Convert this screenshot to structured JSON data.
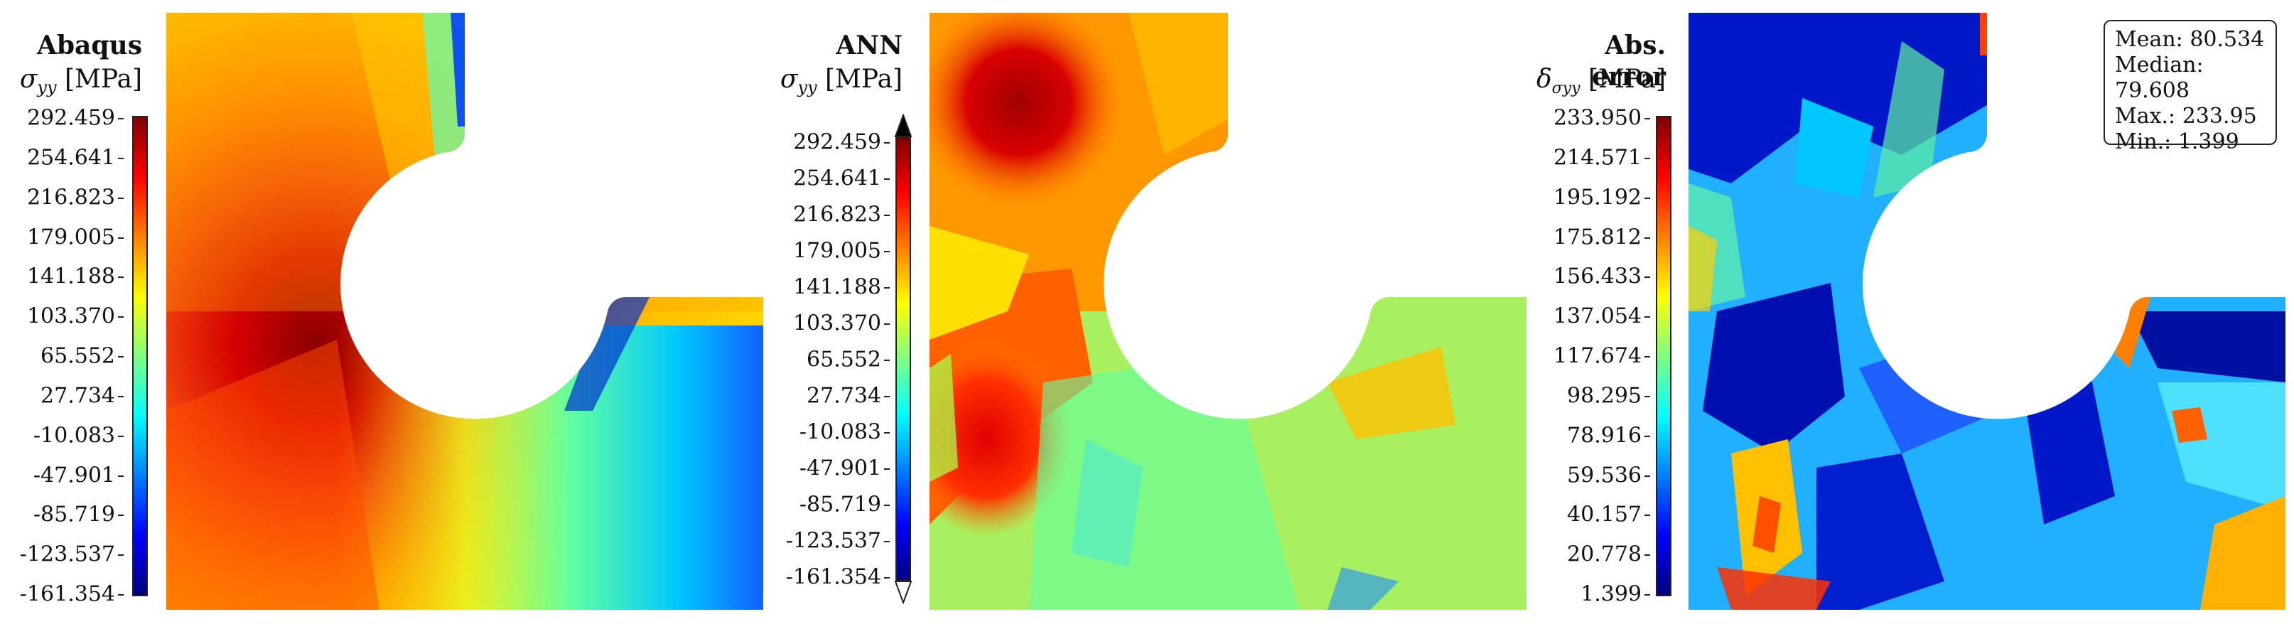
{
  "chart_data": [
    {
      "type": "heatmap",
      "title": "Abaqus",
      "ylabel": "σ_yy [MPa]",
      "ylabel_sym": "σ",
      "ylabel_sub": "yy",
      "ylabel_unit": "[MPa]",
      "colormap": "jet",
      "clim": [
        -161.354,
        292.459
      ],
      "colorbar_ticks": [
        "292.459",
        "254.641",
        "216.823",
        "179.005",
        "141.188",
        "103.370",
        "65.552",
        "27.734",
        "-10.083",
        "-47.901",
        "-85.719",
        "-123.537",
        "-161.354"
      ],
      "colorbar_extend": "none"
    },
    {
      "type": "heatmap",
      "title": "ANN",
      "ylabel": "σ_yy [MPa]",
      "ylabel_sym": "σ",
      "ylabel_sub": "yy",
      "ylabel_unit": "[MPa]",
      "colormap": "jet",
      "clim": [
        -161.354,
        292.459
      ],
      "colorbar_ticks": [
        "292.459",
        "254.641",
        "216.823",
        "179.005",
        "141.188",
        "103.370",
        "65.552",
        "27.734",
        "-10.083",
        "-47.901",
        "-85.719",
        "-123.537",
        "-161.354"
      ],
      "colorbar_extend": "both"
    },
    {
      "type": "heatmap",
      "title": "Abs. error",
      "ylabel": "δ_σyy [MPa]",
      "ylabel_sym": "δ",
      "ylabel_sub": "σyy",
      "ylabel_unit": "[MPa]",
      "colormap": "jet",
      "clim": [
        1.399,
        233.95
      ],
      "colorbar_ticks": [
        "233.950",
        "214.571",
        "195.192",
        "175.812",
        "156.433",
        "137.054",
        "117.674",
        "98.295",
        "78.916",
        "59.536",
        "40.157",
        "20.778",
        "1.399"
      ],
      "colorbar_extend": "none",
      "stats": {
        "mean": "Mean: 80.534",
        "median": "Median: 79.608",
        "max": "Max.: 233.95",
        "min": "Min.: 1.399"
      }
    }
  ]
}
